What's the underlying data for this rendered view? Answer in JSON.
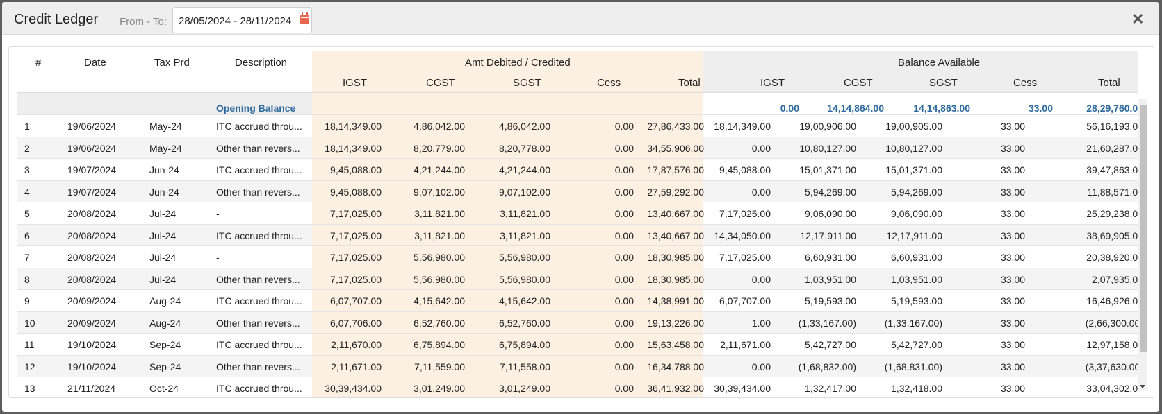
{
  "header": {
    "title": "Credit Ledger",
    "from_label": "From - To:",
    "date_range": "28/05/2024 - 28/11/2024",
    "close_symbol": "✕"
  },
  "table": {
    "columns": [
      "#",
      "Date",
      "Tax Prd",
      "Description"
    ],
    "group_debited": "Amt Debited / Credited",
    "group_balance": "Balance Available",
    "sub_columns": [
      "IGST",
      "CGST",
      "SGST",
      "Cess",
      "Total"
    ],
    "opening_balance": {
      "label": "Opening Balance",
      "values": [
        "0.00",
        "14,14,864.00",
        "14,14,863.00",
        "33.00",
        "28,29,760.00"
      ]
    },
    "rows": [
      [
        "1",
        "19/06/2024",
        "May-24",
        "ITC accrued throu...",
        "18,14,349.00",
        "4,86,042.00",
        "4,86,042.00",
        "0.00",
        "27,86,433.00",
        "18,14,349.00",
        "19,00,906.00",
        "19,00,905.00",
        "33.00",
        "56,16,193.00"
      ],
      [
        "2",
        "19/06/2024",
        "May-24",
        "Other than revers...",
        "18,14,349.00",
        "8,20,779.00",
        "8,20,778.00",
        "0.00",
        "34,55,906.00",
        "0.00",
        "10,80,127.00",
        "10,80,127.00",
        "33.00",
        "21,60,287.00"
      ],
      [
        "3",
        "19/07/2024",
        "Jun-24",
        "ITC accrued throu...",
        "9,45,088.00",
        "4,21,244.00",
        "4,21,244.00",
        "0.00",
        "17,87,576.00",
        "9,45,088.00",
        "15,01,371.00",
        "15,01,371.00",
        "33.00",
        "39,47,863.00"
      ],
      [
        "4",
        "19/07/2024",
        "Jun-24",
        "Other than revers...",
        "9,45,088.00",
        "9,07,102.00",
        "9,07,102.00",
        "0.00",
        "27,59,292.00",
        "0.00",
        "5,94,269.00",
        "5,94,269.00",
        "33.00",
        "11,88,571.00"
      ],
      [
        "5",
        "20/08/2024",
        "Jul-24",
        "-",
        "7,17,025.00",
        "3,11,821.00",
        "3,11,821.00",
        "0.00",
        "13,40,667.00",
        "7,17,025.00",
        "9,06,090.00",
        "9,06,090.00",
        "33.00",
        "25,29,238.00"
      ],
      [
        "6",
        "20/08/2024",
        "Jul-24",
        "ITC accrued throu...",
        "7,17,025.00",
        "3,11,821.00",
        "3,11,821.00",
        "0.00",
        "13,40,667.00",
        "14,34,050.00",
        "12,17,911.00",
        "12,17,911.00",
        "33.00",
        "38,69,905.00"
      ],
      [
        "7",
        "20/08/2024",
        "Jul-24",
        "-",
        "7,17,025.00",
        "5,56,980.00",
        "5,56,980.00",
        "0.00",
        "18,30,985.00",
        "7,17,025.00",
        "6,60,931.00",
        "6,60,931.00",
        "33.00",
        "20,38,920.00"
      ],
      [
        "8",
        "20/08/2024",
        "Jul-24",
        "Other than revers...",
        "7,17,025.00",
        "5,56,980.00",
        "5,56,980.00",
        "0.00",
        "18,30,985.00",
        "0.00",
        "1,03,951.00",
        "1,03,951.00",
        "33.00",
        "2,07,935.00"
      ],
      [
        "9",
        "20/09/2024",
        "Aug-24",
        "ITC accrued throu...",
        "6,07,707.00",
        "4,15,642.00",
        "4,15,642.00",
        "0.00",
        "14,38,991.00",
        "6,07,707.00",
        "5,19,593.00",
        "5,19,593.00",
        "33.00",
        "16,46,926.00"
      ],
      [
        "10",
        "20/09/2024",
        "Aug-24",
        "Other than revers...",
        "6,07,706.00",
        "6,52,760.00",
        "6,52,760.00",
        "0.00",
        "19,13,226.00",
        "1.00",
        "(1,33,167.00)",
        "(1,33,167.00)",
        "33.00",
        "(2,66,300.00)"
      ],
      [
        "11",
        "19/10/2024",
        "Sep-24",
        "ITC accrued throu...",
        "2,11,670.00",
        "6,75,894.00",
        "6,75,894.00",
        "0.00",
        "15,63,458.00",
        "2,11,671.00",
        "5,42,727.00",
        "5,42,727.00",
        "33.00",
        "12,97,158.00"
      ],
      [
        "12",
        "19/10/2024",
        "Sep-24",
        "Other than revers...",
        "2,11,671.00",
        "7,11,559.00",
        "7,11,558.00",
        "0.00",
        "16,34,788.00",
        "0.00",
        "(1,68,832.00)",
        "(1,68,831.00)",
        "33.00",
        "(3,37,630.00)"
      ],
      [
        "13",
        "21/11/2024",
        "Oct-24",
        "ITC accrued throu...",
        "30,39,434.00",
        "3,01,249.00",
        "3,01,249.00",
        "0.00",
        "36,41,932.00",
        "30,39,434.00",
        "1,32,417.00",
        "1,32,418.00",
        "33.00",
        "33,04,302.00"
      ]
    ]
  },
  "colors": {
    "debited_bg": "#fcf0e3",
    "balance_bg": "#eeeeee",
    "opening_text": "#2e6a9e"
  }
}
